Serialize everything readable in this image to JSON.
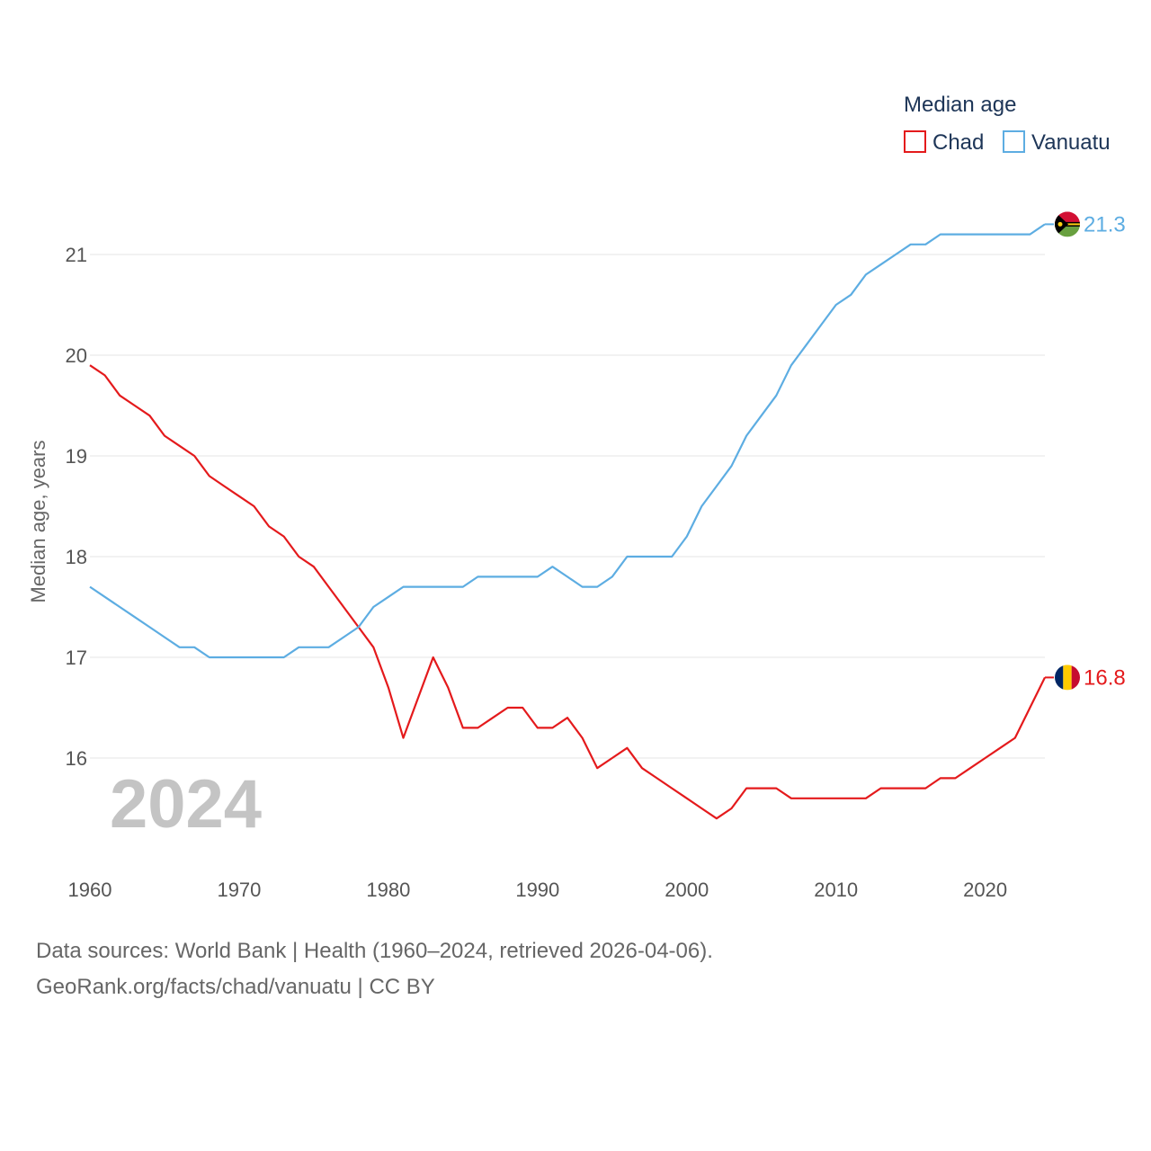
{
  "chart_data": {
    "type": "line",
    "title": "",
    "legend_title": "Median age",
    "legend_position": "top-right",
    "ylabel": "Median age, years",
    "xlabel": "",
    "xlim": [
      1960,
      2024
    ],
    "ylim": [
      15.0,
      21.6
    ],
    "x_ticks": [
      1960,
      1970,
      1980,
      1990,
      2000,
      2010,
      2020
    ],
    "y_ticks": [
      16,
      17,
      18,
      19,
      20,
      21
    ],
    "grid": "horizontal",
    "watermark_year": "2024",
    "x": [
      1960,
      1961,
      1962,
      1963,
      1964,
      1965,
      1966,
      1967,
      1968,
      1969,
      1970,
      1971,
      1972,
      1973,
      1974,
      1975,
      1976,
      1977,
      1978,
      1979,
      1980,
      1981,
      1982,
      1983,
      1984,
      1985,
      1986,
      1987,
      1988,
      1989,
      1990,
      1991,
      1992,
      1993,
      1994,
      1995,
      1996,
      1997,
      1998,
      1999,
      2000,
      2001,
      2002,
      2003,
      2004,
      2005,
      2006,
      2007,
      2008,
      2009,
      2010,
      2011,
      2012,
      2013,
      2014,
      2015,
      2016,
      2017,
      2018,
      2019,
      2020,
      2021,
      2022,
      2023,
      2024
    ],
    "series": [
      {
        "name": "Chad",
        "color": "#e41a1c",
        "end_label": "16.8",
        "flag": "chad-flag",
        "values": [
          19.9,
          19.8,
          19.6,
          19.5,
          19.4,
          19.2,
          19.1,
          19.0,
          18.8,
          18.7,
          18.6,
          18.5,
          18.3,
          18.2,
          18.0,
          17.9,
          17.7,
          17.5,
          17.3,
          17.1,
          16.7,
          16.2,
          16.6,
          17.0,
          16.7,
          16.3,
          16.3,
          16.4,
          16.5,
          16.5,
          16.3,
          16.3,
          16.4,
          16.2,
          15.9,
          16.0,
          16.1,
          15.9,
          15.8,
          15.7,
          15.6,
          15.5,
          15.4,
          15.5,
          15.7,
          15.7,
          15.7,
          15.6,
          15.6,
          15.6,
          15.6,
          15.6,
          15.6,
          15.7,
          15.7,
          15.7,
          15.7,
          15.8,
          15.8,
          15.9,
          16.0,
          16.1,
          16.2,
          16.5,
          16.8
        ]
      },
      {
        "name": "Vanuatu",
        "color": "#5dade2",
        "end_label": "21.3",
        "flag": "vanuatu-flag",
        "values": [
          17.7,
          17.6,
          17.5,
          17.4,
          17.3,
          17.2,
          17.1,
          17.1,
          17.0,
          17.0,
          17.0,
          17.0,
          17.0,
          17.0,
          17.1,
          17.1,
          17.1,
          17.2,
          17.3,
          17.5,
          17.6,
          17.7,
          17.7,
          17.7,
          17.7,
          17.7,
          17.8,
          17.8,
          17.8,
          17.8,
          17.8,
          17.9,
          17.8,
          17.7,
          17.7,
          17.8,
          18.0,
          18.0,
          18.0,
          18.0,
          18.2,
          18.5,
          18.7,
          18.9,
          19.2,
          19.4,
          19.6,
          19.9,
          20.1,
          20.3,
          20.5,
          20.6,
          20.8,
          20.9,
          21.0,
          21.1,
          21.1,
          21.2,
          21.2,
          21.2,
          21.2,
          21.2,
          21.2,
          21.2,
          21.3
        ]
      }
    ]
  },
  "footer": {
    "source": "Data sources: World Bank | Health (1960–2024, retrieved 2026-04-06).",
    "credit": "GeoRank.org/facts/chad/vanuatu | CC BY"
  }
}
